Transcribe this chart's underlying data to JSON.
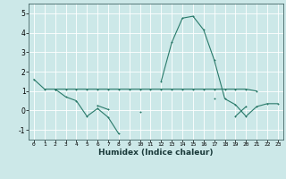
{
  "xlabel": "Humidex (Indice chaleur)",
  "background_color": "#cce8e8",
  "grid_color": "#ffffff",
  "line_color": "#2a7a6a",
  "xlim": [
    -0.5,
    23.5
  ],
  "ylim": [
    -1.5,
    5.5
  ],
  "xticks": [
    0,
    1,
    2,
    3,
    4,
    5,
    6,
    7,
    8,
    9,
    10,
    11,
    12,
    13,
    14,
    15,
    16,
    17,
    18,
    19,
    20,
    21,
    22,
    23
  ],
  "yticks": [
    -1,
    0,
    1,
    2,
    3,
    4,
    5
  ],
  "s1": [
    1.6,
    1.1,
    1.1,
    0.7,
    0.5,
    -0.3,
    0.1,
    -0.35,
    -1.2,
    null,
    null,
    null,
    null,
    null,
    null,
    null,
    null,
    null,
    null,
    null,
    null,
    null,
    null,
    null
  ],
  "s2": [
    null,
    null,
    1.1,
    1.1,
    1.1,
    1.1,
    1.1,
    1.1,
    1.1,
    1.1,
    1.1,
    1.1,
    1.1,
    1.1,
    1.1,
    1.1,
    1.1,
    1.1,
    1.1,
    1.1,
    1.1,
    1.0,
    null,
    null
  ],
  "s3": [
    null,
    null,
    1.1,
    null,
    null,
    null,
    null,
    null,
    null,
    null,
    null,
    null,
    1.5,
    3.5,
    4.75,
    4.85,
    4.15,
    2.6,
    0.6,
    0.3,
    -0.3,
    0.2,
    0.35,
    0.35
  ],
  "s4": [
    null,
    null,
    1.1,
    null,
    null,
    null,
    0.25,
    0.05,
    null,
    null,
    -0.05,
    null,
    null,
    null,
    null,
    null,
    null,
    0.6,
    null,
    -0.3,
    0.2,
    null,
    null,
    null
  ]
}
